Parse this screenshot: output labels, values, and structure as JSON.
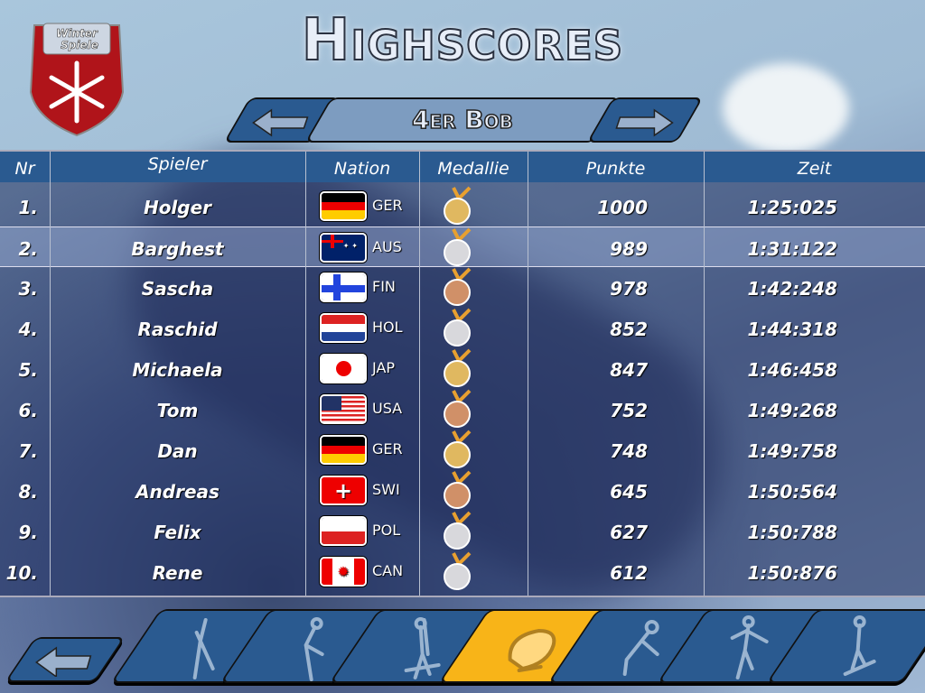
{
  "logo": {
    "text": "Winter Spiele"
  },
  "title": "Highscores",
  "category": {
    "label": "4er Bob",
    "prev_icon": "arrow-left-icon",
    "next_icon": "arrow-right-icon"
  },
  "table": {
    "headers": [
      "Nr",
      "Spieler",
      "Nation",
      "Medallie",
      "Punkte",
      "Zeit"
    ],
    "selected_row": 2,
    "rows": [
      {
        "nr": "1.",
        "name": "Holger",
        "nation": "GER",
        "medal": "gold",
        "points": "1000",
        "time": "1:25:025"
      },
      {
        "nr": "2.",
        "name": "Barghest",
        "nation": "AUS",
        "medal": "silver",
        "points": "989",
        "time": "1:31:122"
      },
      {
        "nr": "3.",
        "name": "Sascha",
        "nation": "FIN",
        "medal": "bronze",
        "points": "978",
        "time": "1:42:248"
      },
      {
        "nr": "4.",
        "name": "Raschid",
        "nation": "HOL",
        "medal": "silver",
        "points": "852",
        "time": "1:44:318"
      },
      {
        "nr": "5.",
        "name": "Michaela",
        "nation": "JAP",
        "medal": "gold",
        "points": "847",
        "time": "1:46:458"
      },
      {
        "nr": "6.",
        "name": "Tom",
        "nation": "USA",
        "medal": "bronze",
        "points": "752",
        "time": "1:49:268"
      },
      {
        "nr": "7.",
        "name": "Dan",
        "nation": "GER",
        "medal": "gold",
        "points": "748",
        "time": "1:49:758"
      },
      {
        "nr": "8.",
        "name": "Andreas",
        "nation": "SWI",
        "medal": "bronze",
        "points": "645",
        "time": "1:50:564"
      },
      {
        "nr": "9.",
        "name": "Felix",
        "nation": "POL",
        "medal": "silver",
        "points": "627",
        "time": "1:50:788"
      },
      {
        "nr": "10.",
        "name": "Rene",
        "nation": "CAN",
        "medal": "silver",
        "points": "612",
        "time": "1:50:876"
      }
    ]
  },
  "sports": [
    {
      "icon": "ski-jump-icon"
    },
    {
      "icon": "speed-skating-icon"
    },
    {
      "icon": "biathlon-icon"
    },
    {
      "icon": "bobsled-icon",
      "active": true
    },
    {
      "icon": "luge-icon"
    },
    {
      "icon": "figure-skating-icon"
    },
    {
      "icon": "snowboard-icon"
    }
  ],
  "colors": {
    "header": "#2a5a90",
    "button": "#2a5a90",
    "active": "#f8b418",
    "gold": "#e0b860",
    "silver": "#d8d8dc",
    "bronze": "#d09068"
  }
}
